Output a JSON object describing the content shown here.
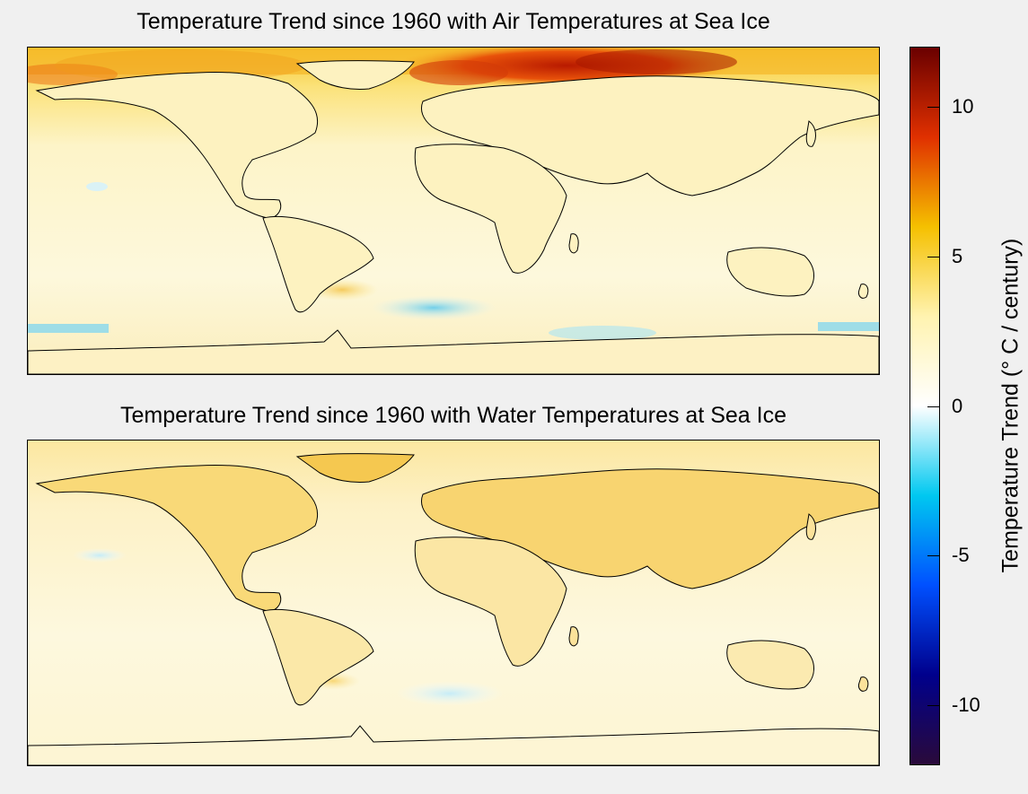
{
  "maps": {
    "top": {
      "title": "Temperature Trend since 1960 with Air Temperatures at Sea Ice"
    },
    "bottom": {
      "title": "Temperature Trend since 1960 with Water Temperatures at Sea Ice"
    }
  },
  "colorbar": {
    "label": "Temperature Trend (° C / century)",
    "range": [
      -12,
      12
    ],
    "ticks": [
      {
        "value": 10,
        "label": "10"
      },
      {
        "value": 5,
        "label": "5"
      },
      {
        "value": 0,
        "label": "0"
      },
      {
        "value": -5,
        "label": "-5"
      },
      {
        "value": -10,
        "label": "-10"
      }
    ],
    "colors": [
      "#2a0a3a",
      "#00008c",
      "#0050ff",
      "#00c8f0",
      "#ffffff",
      "#fff3b0",
      "#f5c000",
      "#e03000",
      "#6a0000"
    ]
  }
}
